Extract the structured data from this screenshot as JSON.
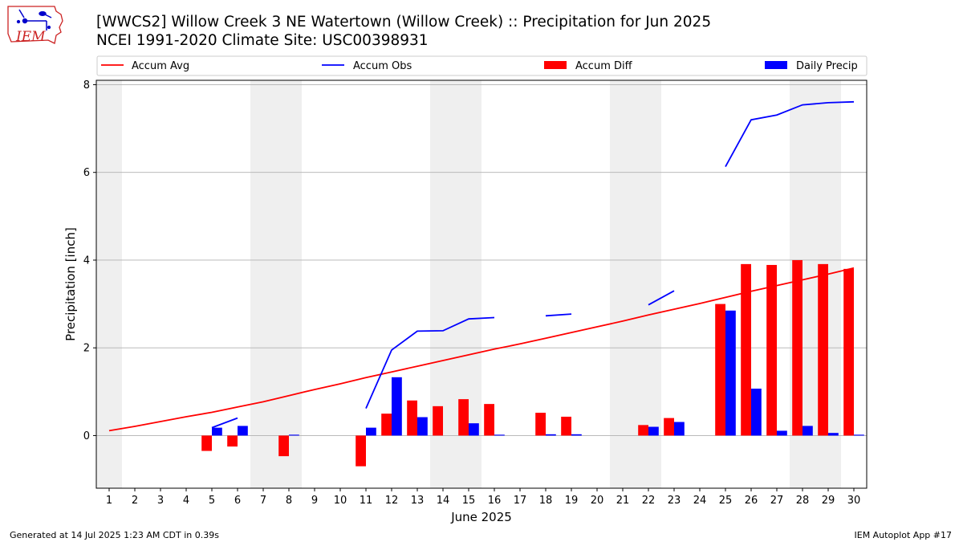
{
  "title_line1": "[WWCS2] Willow Creek 3 NE Watertown (Willow Creek) :: Precipitation for Jun 2025",
  "title_line2": "NCEI 1991-2020 Climate Site: USC00398931",
  "logo_text": "IEM",
  "footer_left": "Generated at 14 Jul 2025 1:23 AM CDT in 0.39s",
  "footer_right": "IEM Autoplot App #17",
  "colors": {
    "avg": "#ff0000",
    "obs": "#0000ff",
    "diff": "#ff0000",
    "daily": "#0000ff",
    "weekend": "#efefef",
    "grid": "#b0b0b0"
  },
  "chart_data": {
    "type": "bar",
    "xlabel": "June 2025",
    "ylabel": "Precipitation [inch]",
    "x": [
      1,
      2,
      3,
      4,
      5,
      6,
      7,
      8,
      9,
      10,
      11,
      12,
      13,
      14,
      15,
      16,
      17,
      18,
      19,
      20,
      21,
      22,
      23,
      24,
      25,
      26,
      27,
      28,
      29,
      30
    ],
    "x_tick_labels": [
      "1",
      "2",
      "3",
      "4",
      "5",
      "6",
      "7",
      "8",
      "9",
      "10",
      "11",
      "12",
      "13",
      "14",
      "15",
      "16",
      "17",
      "18",
      "19",
      "20",
      "21",
      "22",
      "23",
      "24",
      "25",
      "26",
      "27",
      "28",
      "29",
      "30"
    ],
    "xlim": [
      0.5,
      30.5
    ],
    "ylim": [
      -1.2,
      8.1
    ],
    "y_ticks": [
      0,
      2,
      4,
      6,
      8
    ],
    "grid": "horizontal",
    "legend_placement": "top, above plot",
    "weekend_shading_days": [
      1,
      7,
      8,
      14,
      15,
      21,
      22,
      28,
      29
    ],
    "series": [
      {
        "name": "Accum Avg",
        "kind": "line",
        "values": [
          0.11,
          0.21,
          0.32,
          0.43,
          0.53,
          0.65,
          0.77,
          0.91,
          1.05,
          1.18,
          1.32,
          1.45,
          1.58,
          1.71,
          1.84,
          1.97,
          2.09,
          2.22,
          2.35,
          2.48,
          2.61,
          2.75,
          2.88,
          3.01,
          3.15,
          3.29,
          3.42,
          3.55,
          3.68,
          3.82
        ]
      },
      {
        "name": "Accum Obs",
        "kind": "line",
        "values": [
          null,
          null,
          null,
          null,
          0.18,
          0.4,
          null,
          null,
          null,
          null,
          0.62,
          1.95,
          2.38,
          2.39,
          2.66,
          2.69,
          null,
          2.73,
          2.77,
          null,
          null,
          2.98,
          3.3,
          null,
          6.13,
          7.2,
          7.31,
          7.54,
          7.59,
          7.61
        ]
      },
      {
        "name": "Accum Diff",
        "kind": "bar",
        "values": [
          null,
          null,
          null,
          null,
          -0.35,
          -0.25,
          null,
          -0.47,
          null,
          null,
          -0.7,
          0.5,
          0.8,
          0.67,
          0.83,
          0.72,
          null,
          0.52,
          0.43,
          null,
          null,
          0.24,
          0.4,
          null,
          3.0,
          3.91,
          3.89,
          4.0,
          3.91,
          3.8
        ]
      },
      {
        "name": "Daily Precip",
        "kind": "bar",
        "values": [
          null,
          null,
          null,
          null,
          0.18,
          0.22,
          null,
          0.02,
          null,
          null,
          0.18,
          1.33,
          0.42,
          null,
          0.28,
          0.02,
          null,
          0.03,
          0.03,
          null,
          null,
          0.2,
          0.31,
          null,
          2.85,
          1.07,
          0.11,
          0.22,
          0.06,
          0.02
        ]
      }
    ]
  }
}
